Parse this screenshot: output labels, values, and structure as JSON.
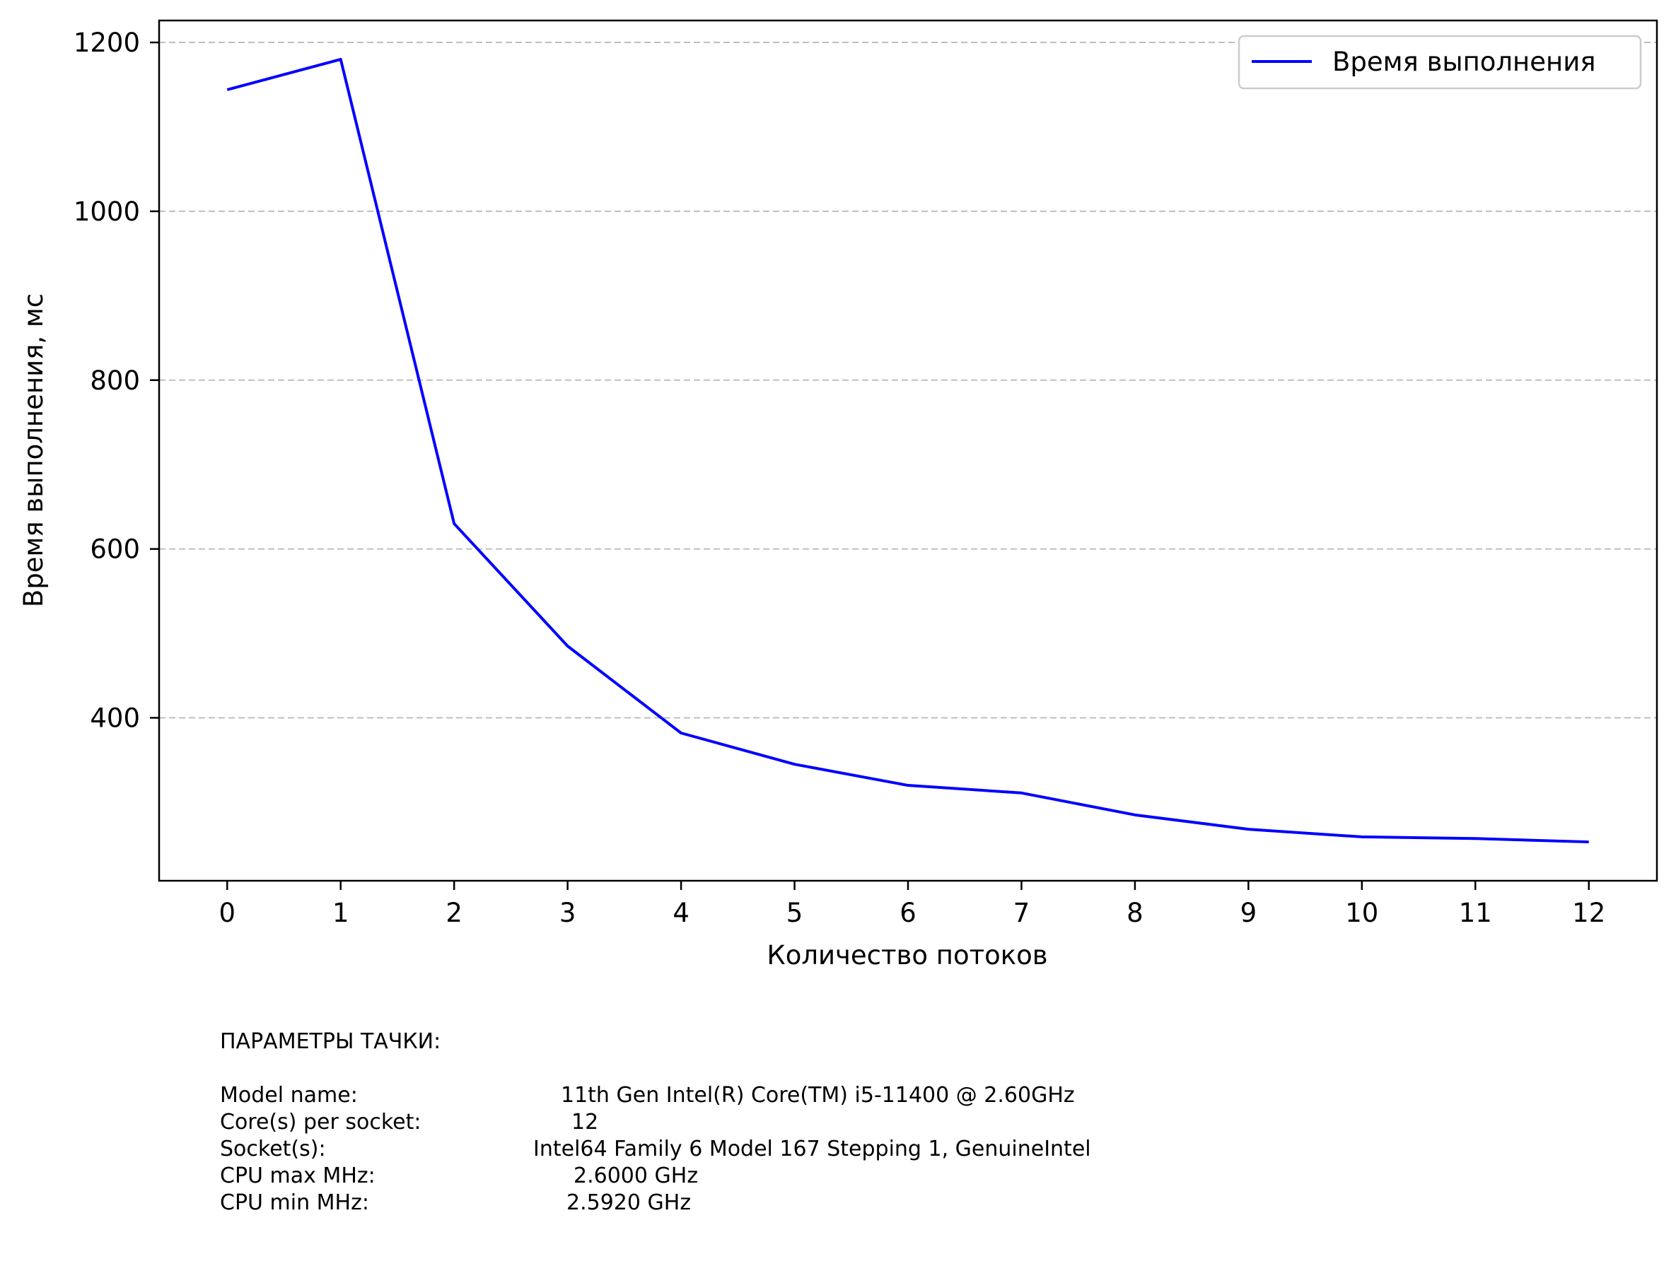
{
  "chart_data": {
    "type": "line",
    "title": "",
    "xlabel": "Количество потоков",
    "ylabel": "Время выполнения, мс",
    "x": [
      0,
      1,
      2,
      3,
      4,
      5,
      6,
      7,
      8,
      9,
      10,
      11,
      12
    ],
    "xticks": [
      "0",
      "1",
      "2",
      "3",
      "4",
      "5",
      "6",
      "7",
      "8",
      "9",
      "10",
      "11",
      "12"
    ],
    "yticks": [
      400,
      600,
      800,
      1000,
      1200
    ],
    "xlim": [
      -0.6,
      12.6
    ],
    "ylim": [
      207,
      1226
    ],
    "grid": "y-dashed",
    "legend_position": "top-right",
    "series": [
      {
        "name": "Время выполнения",
        "color": "#0000ff",
        "values": [
          1144,
          1180,
          630,
          485,
          382,
          345,
          320,
          311,
          285,
          268,
          259,
          257,
          253
        ]
      }
    ]
  },
  "specs": {
    "title": "ПАРАМЕТРЫ ТАЧКИ:",
    "rows": [
      {
        "label": "Model name:",
        "value": "11th Gen Intel(R) Core(TM) i5-11400 @ 2.60GHz"
      },
      {
        "label": "Core(s) per socket:",
        "value": "12"
      },
      {
        "label": "Socket(s):",
        "value": "Intel64 Family 6 Model 167 Stepping 1, GenuineIntel"
      },
      {
        "label": "CPU max MHz:",
        "value": "2.6000 GHz"
      },
      {
        "label": "CPU min MHz:",
        "value": "2.5920 GHz"
      }
    ]
  }
}
